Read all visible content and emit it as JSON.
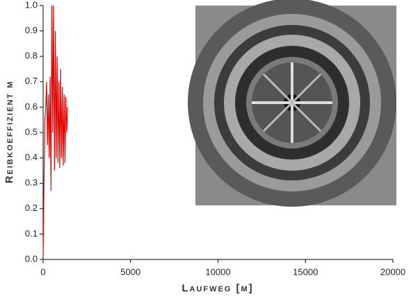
{
  "chart_data": {
    "type": "line",
    "x_label": "Laufweg [m]",
    "y_label": "Reibkoeffizient μ",
    "x": [
      0,
      50,
      100,
      150,
      200,
      250,
      300,
      350,
      400,
      450,
      500,
      550,
      600,
      650,
      700,
      750,
      800,
      850,
      900,
      950,
      1000,
      1050,
      1100,
      1150,
      1200,
      1250,
      1300,
      1350,
      1400
    ],
    "series": [
      {
        "color": "#e00000",
        "values": [
          0.01,
          0.3,
          0.55,
          0.6,
          0.7,
          0.45,
          0.65,
          0.4,
          0.72,
          0.27,
          1,
          0.5,
          1,
          0.35,
          0.9,
          0.4,
          0.8,
          0.38,
          0.7,
          0.36,
          0.75,
          0.4,
          0.68,
          0.37,
          0.65,
          0.38,
          0.64,
          0.5,
          0.6
        ]
      }
    ],
    "xlim": [
      0,
      20000
    ],
    "xticks": [
      0,
      5000,
      10000,
      15000,
      20000
    ],
    "ylim": [
      0,
      1
    ],
    "yticks": [
      {
        "value": 0,
        "label": "0.0"
      },
      0.1,
      0.2,
      0.3,
      0.4,
      0.5,
      0.6,
      0.7,
      0.8,
      0.9,
      {
        "value": 1,
        "label": "1.0"
      }
    ]
  }
}
